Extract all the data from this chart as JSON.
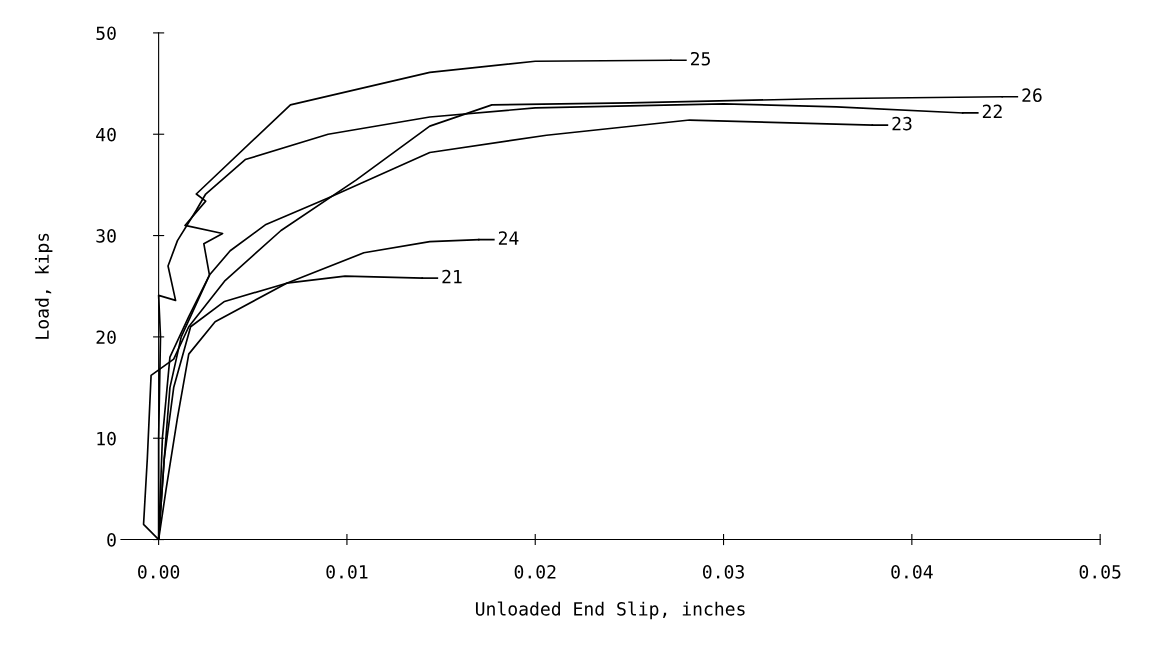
{
  "chart_data": {
    "type": "line",
    "xlabel": "Unloaded End Slip, inches",
    "ylabel": "Load, kips",
    "xlim": [
      -0.002,
      0.05
    ],
    "ylim": [
      0,
      50
    ],
    "xticks": [
      {
        "value": 0,
        "label": "0.00"
      },
      {
        "value": 0.01,
        "label": "0.01"
      },
      {
        "value": 0.02,
        "label": "0.02"
      },
      {
        "value": 0.03,
        "label": "0.03"
      },
      {
        "value": 0.04,
        "label": "0.04"
      },
      {
        "value": 0.05,
        "label": "0.05"
      }
    ],
    "yticks": [
      0,
      10,
      20,
      30,
      40,
      50
    ],
    "grid": false,
    "legend": "right",
    "marker": "none",
    "line_style": "solid",
    "series": [
      {
        "name": "25",
        "color": "#000000",
        "x": [
          0,
          0.0002,
          0.0006,
          0.0016,
          0.0027,
          0.0024,
          0.0034,
          0.0014,
          0.0025,
          0.002,
          0.007,
          0.0144,
          0.02,
          0.0272
        ],
        "values": [
          0,
          10,
          18,
          22,
          26.1,
          29.2,
          30.2,
          31,
          33.4,
          34.1,
          42.9,
          46.1,
          47.2,
          47.3
        ]
      },
      {
        "name": "26",
        "color": "#000000",
        "x": [
          0,
          -0.0008,
          -0.0006,
          -0.0004,
          0.0008,
          0.0016,
          0.0035,
          0.0065,
          0.0105,
          0.0144,
          0.0177,
          0.025,
          0.035,
          0.0448
        ],
        "values": [
          0,
          1.5,
          8,
          16.2,
          17.8,
          21,
          25.5,
          30.5,
          35.5,
          40.8,
          42.9,
          43.1,
          43.5,
          43.7
        ]
      },
      {
        "name": "22",
        "color": "#000000",
        "x": [
          0,
          0,
          0.0001,
          0,
          0.0009,
          0.0005,
          0.001,
          0.002,
          0.0025,
          0.0046,
          0.009,
          0.0144,
          0.02,
          0.03,
          0.036,
          0.0427
        ],
        "values": [
          0,
          10,
          20,
          24.1,
          23.6,
          27,
          29.5,
          32.5,
          34.1,
          37.5,
          40,
          41.7,
          42.6,
          43,
          42.7,
          42.1
        ]
      },
      {
        "name": "23",
        "color": "#000000",
        "x": [
          0,
          0.0003,
          0.0006,
          0.0012,
          0.0027,
          0.0038,
          0.0057,
          0.009,
          0.0144,
          0.0206,
          0.0282,
          0.0379
        ],
        "values": [
          0,
          8,
          15,
          20,
          26.1,
          28.5,
          31.1,
          33.7,
          38.2,
          39.9,
          41.4,
          40.9
        ]
      },
      {
        "name": "24",
        "color": "#000000",
        "x": [
          0,
          0.0004,
          0.001,
          0.0016,
          0.003,
          0.0068,
          0.0109,
          0.0144,
          0.017
        ],
        "values": [
          0,
          5,
          12,
          18.3,
          21.5,
          25.3,
          28.3,
          29.4,
          29.6
        ]
      },
      {
        "name": "21",
        "color": "#000000",
        "x": [
          0,
          0.0003,
          0.0008,
          0.0017,
          0.0035,
          0.0068,
          0.0099,
          0.014
        ],
        "values": [
          0,
          8,
          15,
          21,
          23.5,
          25.3,
          26,
          25.8
        ]
      }
    ]
  }
}
